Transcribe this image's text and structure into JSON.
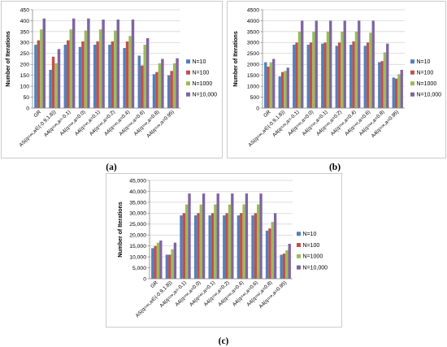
{
  "chart_data": [
    {
      "type": "bar",
      "panel_label": "(a)",
      "ylabel": "Number of Iterations",
      "ylim": [
        0,
        450
      ],
      "yticks": [
        "0",
        "50",
        "100",
        "150",
        "200",
        "250",
        "300",
        "350",
        "400",
        "450"
      ],
      "grid": true,
      "legend": "right",
      "categories": [
        "GR",
        "AS(q=∞,a∈(-0.9,1.8))",
        "A4(q=∞,a=-0.1)",
        "A4(q=∞,a=0.0)",
        "A4(q=∞,a=0.1)",
        "A4(q=∞,a=0.2)",
        "A4(q=∞,a=0.4)",
        "A4(q=∞,a=0.6)",
        "A4(q=∞,a=0.8)",
        "A4(q=∞,a=0.95)"
      ],
      "series": [
        {
          "name": "N=10",
          "color": "#4F81BD",
          "values": [
            290,
            175,
            290,
            280,
            290,
            290,
            275,
            240,
            155,
            150
          ]
        },
        {
          "name": "N=100",
          "color": "#C0504D",
          "values": [
            310,
            235,
            310,
            305,
            305,
            305,
            305,
            195,
            165,
            170
          ]
        },
        {
          "name": "N=1000",
          "color": "#9BBB59",
          "values": [
            360,
            205,
            360,
            355,
            360,
            355,
            330,
            290,
            205,
            205
          ]
        },
        {
          "name": "N=10,000",
          "color": "#8064A2",
          "values": [
            410,
            270,
            410,
            410,
            405,
            405,
            405,
            320,
            225,
            228
          ]
        }
      ]
    },
    {
      "type": "bar",
      "panel_label": "(b)",
      "ylabel": "Number of Iterations",
      "ylim": [
        0,
        4500
      ],
      "yticks": [
        "0",
        "500",
        "1000",
        "1500",
        "2000",
        "2500",
        "3000",
        "3500",
        "4000",
        "4500"
      ],
      "grid": true,
      "legend": "right",
      "categories": [
        "GR",
        "AS(q=∞,a∈(-0.9,1.8))",
        "A4(q=∞,a=-0.1)",
        "A4(q=∞,a=0.0)",
        "A4(q=∞,a=0.1)",
        "A4(q=∞,a=0.2)",
        "A4(q=∞,a=0.4)",
        "A4(q=∞,a=0.6)",
        "A4(q=∞,a=0.8)",
        "A4(q=∞,a=0.95)"
      ],
      "series": [
        {
          "name": "N=10",
          "color": "#4F81BD",
          "values": [
            2100,
            1450,
            2900,
            2900,
            2950,
            2850,
            2900,
            2850,
            2100,
            1400
          ]
        },
        {
          "name": "N=100",
          "color": "#C0504D",
          "values": [
            1900,
            1650,
            3000,
            3000,
            3000,
            3000,
            3050,
            3000,
            2150,
            1350
          ]
        },
        {
          "name": "N=1000",
          "color": "#9BBB59",
          "values": [
            2100,
            1700,
            3500,
            3500,
            3500,
            3500,
            3500,
            3450,
            2550,
            1550
          ]
        },
        {
          "name": "N=10,000",
          "color": "#8064A2",
          "values": [
            2250,
            1850,
            4000,
            4000,
            4000,
            4000,
            4000,
            4000,
            2950,
            1750
          ]
        }
      ]
    },
    {
      "type": "bar",
      "panel_label": "(c)",
      "ylabel": "Number of Iterations",
      "ylim": [
        0,
        45000
      ],
      "yticks": [
        "0",
        "5,000",
        "10,000",
        "15,000",
        "20,000",
        "25,000",
        "30,000",
        "35,000",
        "40,000",
        "45,000"
      ],
      "grid": true,
      "legend": "right",
      "categories": [
        "GR",
        "AS(q=∞,a∈(-0.9,1.8))",
        "A4(q=∞,a=-0.1)",
        "A4(q=∞,a=0.0)",
        "A4(q=∞,a=0.1)",
        "A4(q=∞,a=0.2)",
        "A4(q=∞,a=0.4)",
        "A4(q=∞,a=0.6)",
        "A4(q=∞,a=0.8)",
        "A4(q=∞,a=0.95)"
      ],
      "series": [
        {
          "name": "N=10",
          "color": "#4F81BD",
          "values": [
            14000,
            11000,
            29000,
            29000,
            29000,
            29000,
            29000,
            29000,
            22000,
            11000
          ]
        },
        {
          "name": "N=100",
          "color": "#C0504D",
          "values": [
            15000,
            11000,
            30000,
            30000,
            30000,
            30000,
            30000,
            30000,
            23000,
            11500
          ]
        },
        {
          "name": "N=1000",
          "color": "#9BBB59",
          "values": [
            16500,
            13500,
            34000,
            34000,
            34000,
            34000,
            34000,
            34000,
            26000,
            13000
          ]
        },
        {
          "name": "N=10,000",
          "color": "#8064A2",
          "values": [
            17500,
            16500,
            39000,
            39000,
            39000,
            39000,
            39000,
            39000,
            30000,
            16000
          ]
        }
      ]
    }
  ]
}
